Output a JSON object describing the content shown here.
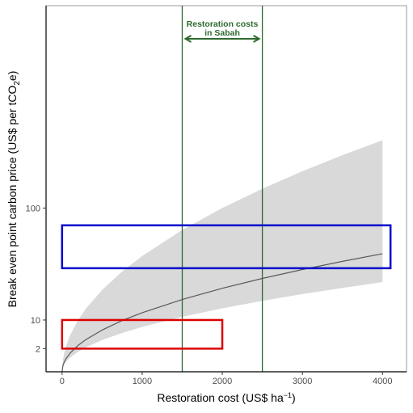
{
  "chart_data": {
    "type": "line",
    "title": "",
    "xlabel": "Restoration cost  (US$ ha",
    "xlabel_sup": "−1",
    "xlabel_close": ")",
    "ylabel": "Break even point carbon price  (US$ per tCO",
    "ylabel_sub": "2",
    "ylabel_end": "e)",
    "xlim": [
      -200,
      4300
    ],
    "x_ticks": [
      0,
      1000,
      2000,
      3000,
      4000
    ],
    "x_tick_labels": [
      "0",
      "1000",
      "2000",
      "3000",
      "4000"
    ],
    "y_scale": "sqrt",
    "ylim": [
      0,
      500
    ],
    "y_ticks": [
      2,
      10,
      100
    ],
    "y_tick_labels": [
      "2",
      "10",
      "100"
    ],
    "grid": false,
    "series": [
      {
        "role": "central-line",
        "color": "#595959",
        "x": [
          0,
          10,
          25,
          50,
          100,
          200,
          300,
          500,
          750,
          1000,
          1500,
          2000,
          2500,
          3000,
          3500,
          4000
        ],
        "y": [
          0,
          0.13,
          0.33,
          0.65,
          1.3,
          2.6,
          3.9,
          6.5,
          9.8,
          13,
          19.5,
          26,
          32.5,
          39,
          45.5,
          52
        ]
      }
    ],
    "confidence_band": {
      "color": "#d9d9d9",
      "x": [
        0,
        10,
        25,
        50,
        100,
        200,
        300,
        500,
        750,
        1000,
        1500,
        2000,
        2500,
        3000,
        3500,
        4000
      ],
      "lower": [
        0,
        0.075,
        0.19,
        0.375,
        0.75,
        1.5,
        2.25,
        3.75,
        5.6,
        7.5,
        11.25,
        15,
        18.75,
        22.5,
        26.25,
        30
      ],
      "upper": [
        0,
        0.5,
        1.25,
        2.5,
        5,
        10,
        15,
        25,
        37.5,
        50,
        75,
        100,
        125,
        150,
        175,
        200
      ]
    },
    "vertical_lines": [
      {
        "x": 1500,
        "color": "#2d6a2d"
      },
      {
        "x": 2500,
        "color": "#2d6a2d"
      }
    ],
    "annotation": {
      "lines": [
        "Restoration costs",
        "in Sabah"
      ],
      "arrow_from": 1500,
      "arrow_to": 2500,
      "color": "#2d6a2d"
    },
    "rectangles": [
      {
        "color": "#0000cc",
        "x0": 0,
        "x1": 4100,
        "y0": 40,
        "y1": 80
      },
      {
        "color": "#dd0000",
        "x0": 0,
        "x1": 2000,
        "y0": 2,
        "y1": 10
      }
    ]
  }
}
